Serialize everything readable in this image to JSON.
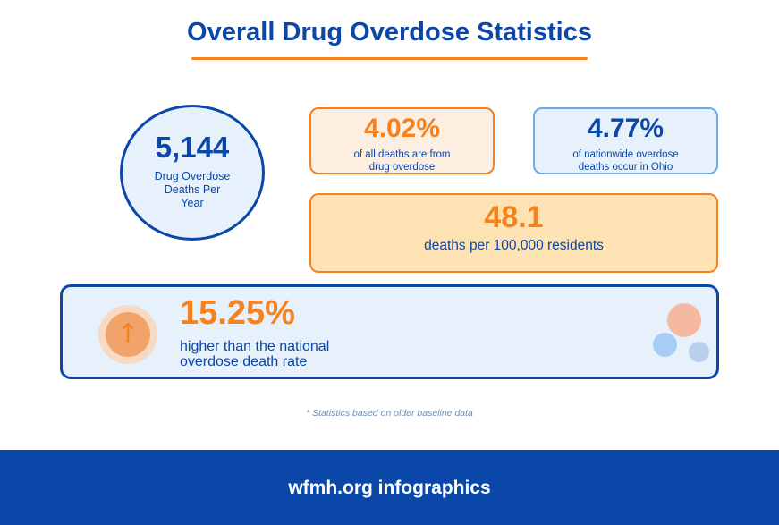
{
  "title": "Overall Drug Overdose Statistics",
  "colors": {
    "primary_blue": "#0b47a8",
    "accent_orange": "#f5821f",
    "light_blue": "#e6f1fc",
    "light_orange": "#fdeee2",
    "wide_card_fill": "#fde2b4"
  },
  "stats": {
    "annual_deaths": {
      "value": "5,144",
      "label": "Drug Overdose Deaths Per Year"
    },
    "share_of_all_deaths": {
      "value": "4.02%",
      "label": "of all deaths are from drug overdose"
    },
    "share_of_nationwide": {
      "value": "4.77%",
      "label": "of nationwide overdose deaths occur in Ohio"
    },
    "rate_per_100k": {
      "value": "48.1",
      "label": "deaths per 100,000 residents"
    },
    "above_national": {
      "value": "15.25%",
      "label": "higher than the national overdose death rate",
      "icon": "arrow-up-icon"
    }
  },
  "footnote": "* Statistics based on older baseline data",
  "footer": {
    "text": "wfmh.org infographics"
  }
}
